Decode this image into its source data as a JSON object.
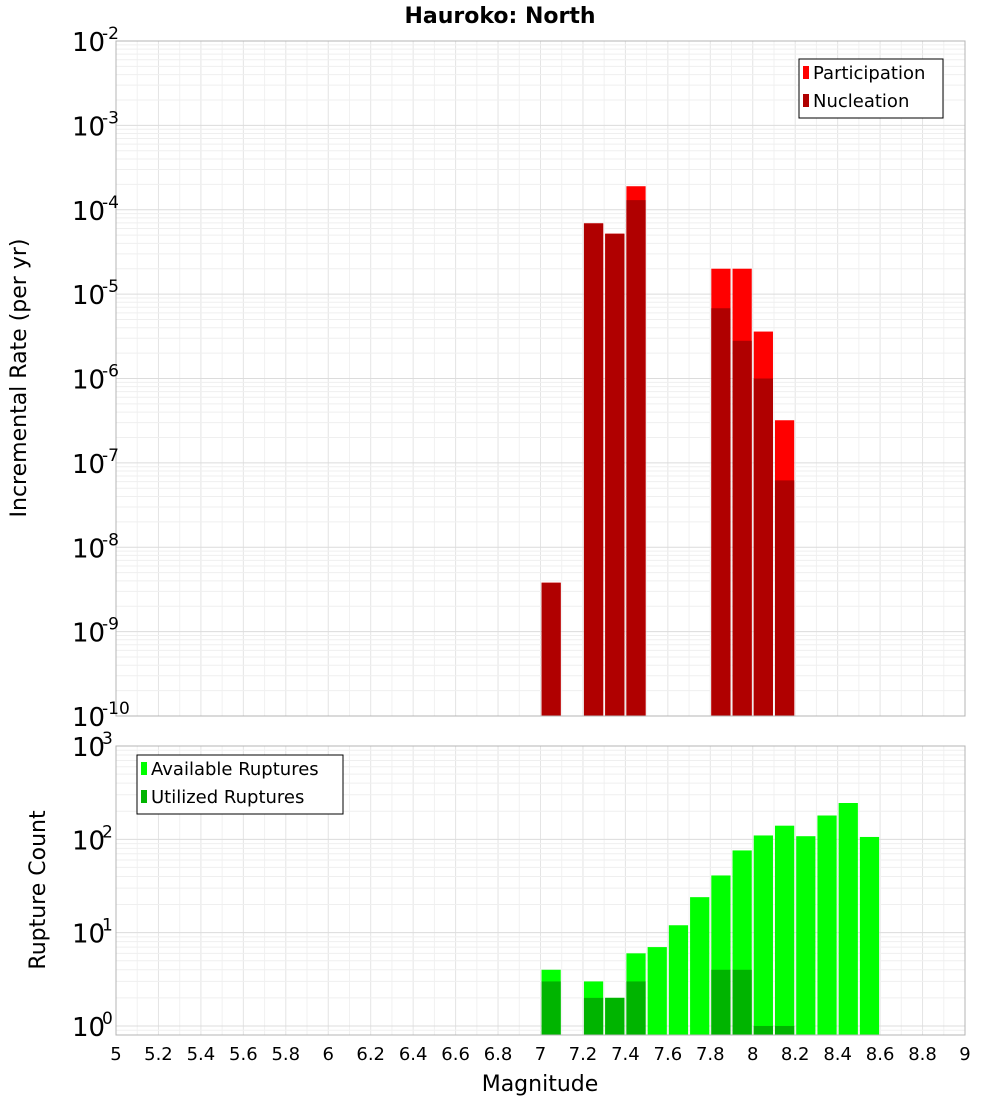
{
  "chart_data": [
    {
      "type": "bar",
      "title": "Hauroko: North",
      "xlabel": "",
      "ylabel": "Incremental Rate (per yr)",
      "yscale": "log",
      "ylim": [
        1e-10,
        0.01
      ],
      "xlim": [
        5,
        9
      ],
      "grid": true,
      "legend_position": "top-right",
      "x": [
        7.0,
        7.2,
        7.3,
        7.4,
        7.8,
        7.9,
        8.0,
        8.1
      ],
      "series": [
        {
          "name": "Participation",
          "color": "#ff0000",
          "values": [
            3.8e-09,
            6.9e-05,
            5.2e-05,
            0.00019,
            2e-05,
            2e-05,
            3.6e-06,
            3.2e-07
          ]
        },
        {
          "name": "Nucleation",
          "color": "#b00000",
          "values": [
            3.8e-09,
            6.9e-05,
            5.2e-05,
            0.00013,
            6.8e-06,
            2.8e-06,
            1e-06,
            6.2e-08
          ]
        }
      ]
    },
    {
      "type": "bar",
      "title": "",
      "xlabel": "Magnitude",
      "ylabel": "Rupture Count",
      "yscale": "log",
      "ylim": [
        0.8,
        1000
      ],
      "xlim": [
        5,
        9
      ],
      "grid": true,
      "legend_position": "top-left",
      "x": [
        7.0,
        7.2,
        7.3,
        7.4,
        7.5,
        7.6,
        7.7,
        7.8,
        7.9,
        8.0,
        8.1,
        8.2,
        8.3,
        8.4,
        8.5
      ],
      "series": [
        {
          "name": "Available Ruptures",
          "color": "#00ff00",
          "values": [
            4,
            3,
            2,
            6,
            7,
            12,
            24,
            41,
            76,
            110,
            140,
            108,
            180,
            245,
            106
          ]
        },
        {
          "name": "Utilized Ruptures",
          "color": "#00b400",
          "values": [
            3,
            2,
            2,
            3,
            null,
            null,
            null,
            4,
            4,
            1,
            1,
            null,
            null,
            null,
            null
          ]
        }
      ]
    }
  ],
  "axes": {
    "x_ticks": [
      "5",
      "5.2",
      "5.4",
      "5.6",
      "5.8",
      "6",
      "6.2",
      "6.4",
      "6.6",
      "6.8",
      "7",
      "7.2",
      "7.4",
      "7.6",
      "7.8",
      "8",
      "8.2",
      "8.4",
      "8.6",
      "8.8",
      "9"
    ],
    "top_y_ticks": [
      {
        "base": "10",
        "exp": "-10"
      },
      {
        "base": "10",
        "exp": "-9"
      },
      {
        "base": "10",
        "exp": "-8"
      },
      {
        "base": "10",
        "exp": "-7"
      },
      {
        "base": "10",
        "exp": "-6"
      },
      {
        "base": "10",
        "exp": "-5"
      },
      {
        "base": "10",
        "exp": "-4"
      },
      {
        "base": "10",
        "exp": "-3"
      },
      {
        "base": "10",
        "exp": "-2"
      }
    ],
    "bottom_y_ticks": [
      {
        "base": "10",
        "exp": "0"
      },
      {
        "base": "10",
        "exp": "1"
      },
      {
        "base": "10",
        "exp": "2"
      },
      {
        "base": "10",
        "exp": "3"
      }
    ]
  }
}
